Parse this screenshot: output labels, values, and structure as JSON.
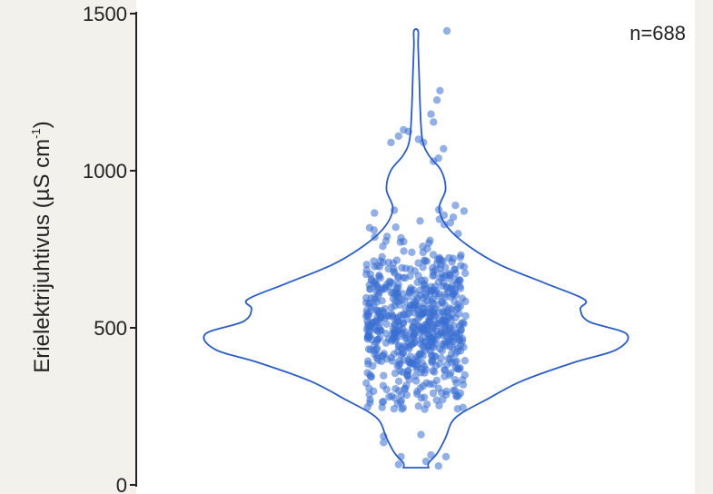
{
  "chart_data": {
    "type": "violin",
    "title": "",
    "xlabel": "",
    "ylabel": "Erielektrijuhtivus (µS cm⁻¹)",
    "ylabel_main": "Erielektrijuhtivus (µS cm",
    "ylabel_sup": "-1",
    "ylabel_close": ")",
    "ylim": [
      0,
      1500
    ],
    "y_ticks": [
      0,
      500,
      1000,
      1500
    ],
    "annotation": "n=688",
    "n": 688,
    "point_color": "#3b6fd1",
    "outline_color": "#2a5cc6",
    "violin_profile": [
      {
        "y": 55,
        "w": 0.06
      },
      {
        "y": 70,
        "w": 0.06
      },
      {
        "y": 100,
        "w": 0.1
      },
      {
        "y": 150,
        "w": 0.14
      },
      {
        "y": 200,
        "w": 0.17
      },
      {
        "y": 230,
        "w": 0.22
      },
      {
        "y": 270,
        "w": 0.33
      },
      {
        "y": 330,
        "w": 0.5
      },
      {
        "y": 390,
        "w": 0.75
      },
      {
        "y": 430,
        "w": 0.95
      },
      {
        "y": 480,
        "w": 1.0
      },
      {
        "y": 520,
        "w": 0.82
      },
      {
        "y": 560,
        "w": 0.78
      },
      {
        "y": 590,
        "w": 0.8
      },
      {
        "y": 640,
        "w": 0.62
      },
      {
        "y": 700,
        "w": 0.4
      },
      {
        "y": 760,
        "w": 0.25
      },
      {
        "y": 820,
        "w": 0.15
      },
      {
        "y": 880,
        "w": 0.11
      },
      {
        "y": 940,
        "w": 0.14
      },
      {
        "y": 1000,
        "w": 0.12
      },
      {
        "y": 1050,
        "w": 0.06
      },
      {
        "y": 1100,
        "w": 0.03
      },
      {
        "y": 1200,
        "w": 0.02
      },
      {
        "y": 1300,
        "w": 0.015
      },
      {
        "y": 1400,
        "w": 0.01
      },
      {
        "y": 1445,
        "w": 0.01
      }
    ],
    "outliers": [
      {
        "x": 0.62,
        "y": 1445
      },
      {
        "x": 0.48,
        "y": 1255
      },
      {
        "x": 0.42,
        "y": 1225
      },
      {
        "x": 0.3,
        "y": 1180
      },
      {
        "x": 0.35,
        "y": 1155
      },
      {
        "x": -0.25,
        "y": 1130
      },
      {
        "x": -0.15,
        "y": 1125
      },
      {
        "x": -0.35,
        "y": 1110
      },
      {
        "x": -0.5,
        "y": 1090
      },
      {
        "x": 0.05,
        "y": 1100
      },
      {
        "x": 0.15,
        "y": 1090
      },
      {
        "x": 0.55,
        "y": 1070
      },
      {
        "x": 0.45,
        "y": 1040
      },
      {
        "x": 0.35,
        "y": 1030
      },
      {
        "x": 0.1,
        "y": 160
      },
      {
        "x": -0.65,
        "y": 155
      },
      {
        "x": -0.65,
        "y": 135
      },
      {
        "x": -0.3,
        "y": 90
      },
      {
        "x": 0.3,
        "y": 95
      },
      {
        "x": 0.6,
        "y": 90
      },
      {
        "x": -0.35,
        "y": 65
      },
      {
        "x": 0.45,
        "y": 60
      },
      {
        "x": 0.2,
        "y": 75
      }
    ]
  }
}
